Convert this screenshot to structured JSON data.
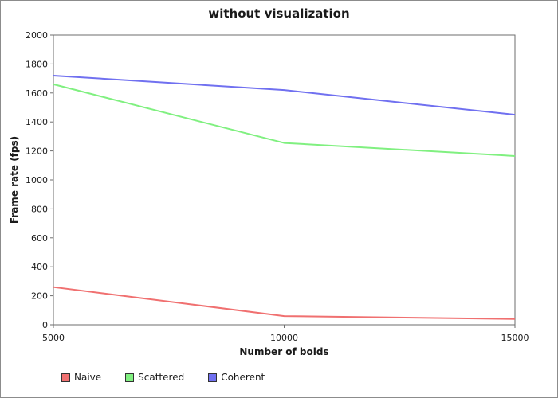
{
  "chart_data": {
    "type": "line",
    "title": "without visualization",
    "xlabel": "Number of boids",
    "ylabel": "Frame rate (fps)",
    "x": [
      5000,
      10000,
      15000
    ],
    "x_tick_labels": [
      "5000",
      "10000",
      "15000"
    ],
    "xlim": [
      5000,
      15000
    ],
    "ylim": [
      0,
      2000
    ],
    "y_ticks": [
      0,
      200,
      400,
      600,
      800,
      1000,
      1200,
      1400,
      1600,
      1800,
      2000
    ],
    "grid": false,
    "legend_position": "bottom-left",
    "series": [
      {
        "name": "Naive",
        "color": "#f07070",
        "values": [
          260,
          60,
          40
        ]
      },
      {
        "name": "Scattered",
        "color": "#80f080",
        "values": [
          1660,
          1255,
          1165
        ]
      },
      {
        "name": "Coherent",
        "color": "#7070f0",
        "values": [
          1720,
          1620,
          1450
        ]
      }
    ]
  }
}
